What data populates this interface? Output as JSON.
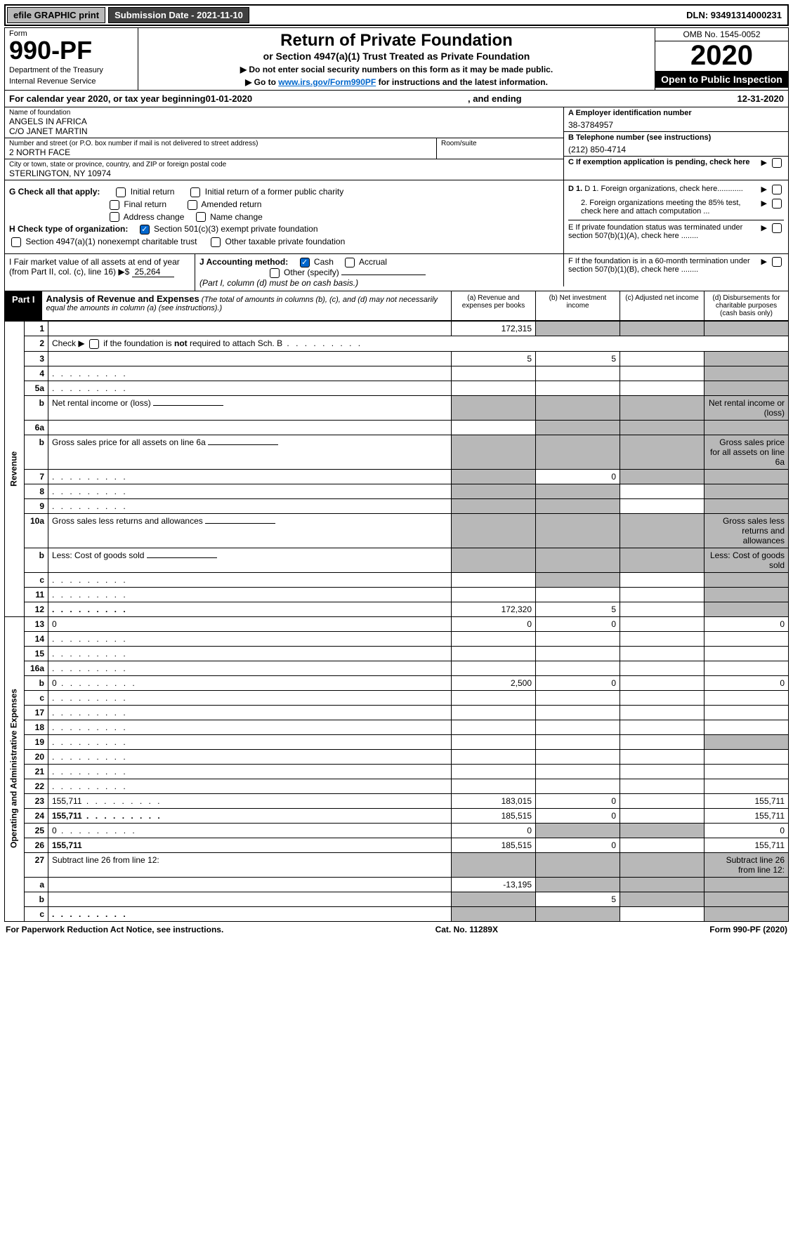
{
  "top": {
    "efile": "efile GRAPHIC print",
    "submission": "Submission Date - 2021-11-10",
    "dln": "DLN: 93491314000231"
  },
  "header": {
    "form_label": "Form",
    "form_num": "990-PF",
    "dept": "Department of the Treasury",
    "irs": "Internal Revenue Service",
    "title": "Return of Private Foundation",
    "subtitle": "or Section 4947(a)(1) Trust Treated as Private Foundation",
    "note1": "▶ Do not enter social security numbers on this form as it may be made public.",
    "note2_pre": "▶ Go to ",
    "note2_link": "www.irs.gov/Form990PF",
    "note2_post": " for instructions and the latest information.",
    "omb": "OMB No. 1545-0052",
    "year": "2020",
    "open": "Open to Public Inspection"
  },
  "calyear": {
    "pre": "For calendar year 2020, or tax year beginning ",
    "begin": "01-01-2020",
    "mid": " , and ending ",
    "end": "12-31-2020"
  },
  "entity": {
    "name_label": "Name of foundation",
    "name1": "ANGELS IN AFRICA",
    "name2": "C/O JANET MARTIN",
    "addr_label": "Number and street (or P.O. box number if mail is not delivered to street address)",
    "addr": "2 NORTH FACE",
    "room_label": "Room/suite",
    "city_label": "City or town, state or province, country, and ZIP or foreign postal code",
    "city": "STERLINGTON, NY  10974",
    "ein_label": "A Employer identification number",
    "ein": "38-3784957",
    "tel_label": "B Telephone number (see instructions)",
    "tel": "(212) 850-4714",
    "c_label": "C If exemption application is pending, check here"
  },
  "checks": {
    "g": "G Check all that apply:",
    "initial": "Initial return",
    "initial_former": "Initial return of a former public charity",
    "final": "Final return",
    "amended": "Amended return",
    "address": "Address change",
    "name_change": "Name change",
    "h": "H Check type of organization:",
    "h1": "Section 501(c)(3) exempt private foundation",
    "h2": "Section 4947(a)(1) nonexempt charitable trust",
    "h3": "Other taxable private foundation",
    "d1": "D 1. Foreign organizations, check here............",
    "d2": "2. Foreign organizations meeting the 85% test, check here and attach computation ...",
    "e": "E  If private foundation status was terminated under section 507(b)(1)(A), check here ........"
  },
  "acct": {
    "i_label": "I Fair market value of all assets at end of year (from Part II, col. (c), line 16) ▶$",
    "i_val": "25,264",
    "j": "J Accounting method:",
    "cash": "Cash",
    "accrual": "Accrual",
    "other": "Other (specify)",
    "note": "(Part I, column (d) must be on cash basis.)",
    "f": "F  If the foundation is in a 60-month termination under section 507(b)(1)(B), check here ........"
  },
  "part1": {
    "label": "Part I",
    "title": "Analysis of Revenue and Expenses",
    "note": " (The total of amounts in columns (b), (c), and (d) may not necessarily equal the amounts in column (a) (see instructions).)",
    "col_a": "(a)   Revenue and expenses per books",
    "col_b": "(b)  Net investment income",
    "col_c": "(c)  Adjusted net income",
    "col_d": "(d)  Disbursements for charitable purposes (cash basis only)"
  },
  "rows": [
    {
      "n": "1",
      "d": "",
      "a": "172,315",
      "b": "",
      "c": "",
      "grey": [
        "b",
        "c",
        "d"
      ]
    },
    {
      "n": "2",
      "d": "Check ▶ ☐ if the foundation is not required to attach Sch. B",
      "span": true
    },
    {
      "n": "3",
      "d": "",
      "a": "5",
      "b": "5",
      "c": "",
      "grey": [
        "d"
      ]
    },
    {
      "n": "4",
      "d": "",
      "a": "",
      "b": "",
      "c": "",
      "grey": [
        "d"
      ],
      "dots": true
    },
    {
      "n": "5a",
      "d": "",
      "a": "",
      "b": "",
      "c": "",
      "grey": [
        "d"
      ],
      "dots": true
    },
    {
      "n": "b",
      "d": "Net rental income or (loss)",
      "inline": true,
      "grey": [
        "a",
        "b",
        "c",
        "d"
      ]
    },
    {
      "n": "6a",
      "d": "",
      "a": "",
      "b": "",
      "c": "",
      "grey": [
        "b",
        "c",
        "d"
      ]
    },
    {
      "n": "b",
      "d": "Gross sales price for all assets on line 6a",
      "inline": true,
      "grey": [
        "a",
        "b",
        "c",
        "d"
      ]
    },
    {
      "n": "7",
      "d": "",
      "a": "",
      "b": "0",
      "c": "",
      "grey": [
        "a",
        "c",
        "d"
      ],
      "dots": true
    },
    {
      "n": "8",
      "d": "",
      "a": "",
      "b": "",
      "c": "",
      "grey": [
        "a",
        "b",
        "d"
      ],
      "dots": true
    },
    {
      "n": "9",
      "d": "",
      "a": "",
      "b": "",
      "c": "",
      "grey": [
        "a",
        "b",
        "d"
      ],
      "dots": true
    },
    {
      "n": "10a",
      "d": "Gross sales less returns and allowances",
      "inline": true,
      "grey": [
        "a",
        "b",
        "c",
        "d"
      ]
    },
    {
      "n": "b",
      "d": "Less: Cost of goods sold",
      "inline": true,
      "grey": [
        "a",
        "b",
        "c",
        "d"
      ],
      "dots": true
    },
    {
      "n": "c",
      "d": "",
      "a": "",
      "b": "",
      "c": "",
      "grey": [
        "b",
        "d"
      ],
      "dots": true
    },
    {
      "n": "11",
      "d": "",
      "a": "",
      "b": "",
      "c": "",
      "grey": [
        "d"
      ],
      "dots": true
    },
    {
      "n": "12",
      "d": "",
      "a": "172,320",
      "b": "5",
      "c": "",
      "bold": true,
      "grey": [
        "d"
      ],
      "dots": true
    },
    {
      "n": "13",
      "d": "0",
      "a": "0",
      "b": "0",
      "c": ""
    },
    {
      "n": "14",
      "d": "",
      "a": "",
      "b": "",
      "c": "",
      "dots": true
    },
    {
      "n": "15",
      "d": "",
      "a": "",
      "b": "",
      "c": "",
      "dots": true
    },
    {
      "n": "16a",
      "d": "",
      "a": "",
      "b": "",
      "c": "",
      "dots": true
    },
    {
      "n": "b",
      "d": "0",
      "a": "2,500",
      "b": "0",
      "c": "",
      "dots": true
    },
    {
      "n": "c",
      "d": "",
      "a": "",
      "b": "",
      "c": "",
      "dots": true
    },
    {
      "n": "17",
      "d": "",
      "a": "",
      "b": "",
      "c": "",
      "dots": true
    },
    {
      "n": "18",
      "d": "",
      "a": "",
      "b": "",
      "c": "",
      "dots": true
    },
    {
      "n": "19",
      "d": "",
      "a": "",
      "b": "",
      "c": "",
      "grey": [
        "d"
      ],
      "dots": true
    },
    {
      "n": "20",
      "d": "",
      "a": "",
      "b": "",
      "c": "",
      "dots": true
    },
    {
      "n": "21",
      "d": "",
      "a": "",
      "b": "",
      "c": "",
      "dots": true
    },
    {
      "n": "22",
      "d": "",
      "a": "",
      "b": "",
      "c": "",
      "dots": true
    },
    {
      "n": "23",
      "d": "155,711",
      "a": "183,015",
      "b": "0",
      "c": "",
      "dots": true
    },
    {
      "n": "24",
      "d": "155,711",
      "a": "185,515",
      "b": "0",
      "c": "",
      "bold": true,
      "dots": true
    },
    {
      "n": "25",
      "d": "0",
      "a": "0",
      "b": "",
      "c": "",
      "grey": [
        "b",
        "c"
      ],
      "dots": true
    },
    {
      "n": "26",
      "d": "155,711",
      "a": "185,515",
      "b": "0",
      "c": "",
      "bold": true
    },
    {
      "n": "27",
      "d": "Subtract line 26 from line 12:",
      "grey": [
        "a",
        "b",
        "c",
        "d"
      ]
    },
    {
      "n": "a",
      "d": "",
      "a": "-13,195",
      "b": "",
      "c": "",
      "bold": true,
      "grey": [
        "b",
        "c",
        "d"
      ]
    },
    {
      "n": "b",
      "d": "",
      "a": "",
      "b": "5",
      "c": "",
      "bold": true,
      "grey": [
        "a",
        "c",
        "d"
      ]
    },
    {
      "n": "c",
      "d": "",
      "a": "",
      "b": "",
      "c": "",
      "bold": true,
      "grey": [
        "a",
        "b",
        "d"
      ],
      "dots": true
    }
  ],
  "vlabels": {
    "revenue": "Revenue",
    "expenses": "Operating and Administrative Expenses"
  },
  "footer": {
    "left": "For Paperwork Reduction Act Notice, see instructions.",
    "mid": "Cat. No. 11289X",
    "right": "Form 990-PF (2020)"
  }
}
